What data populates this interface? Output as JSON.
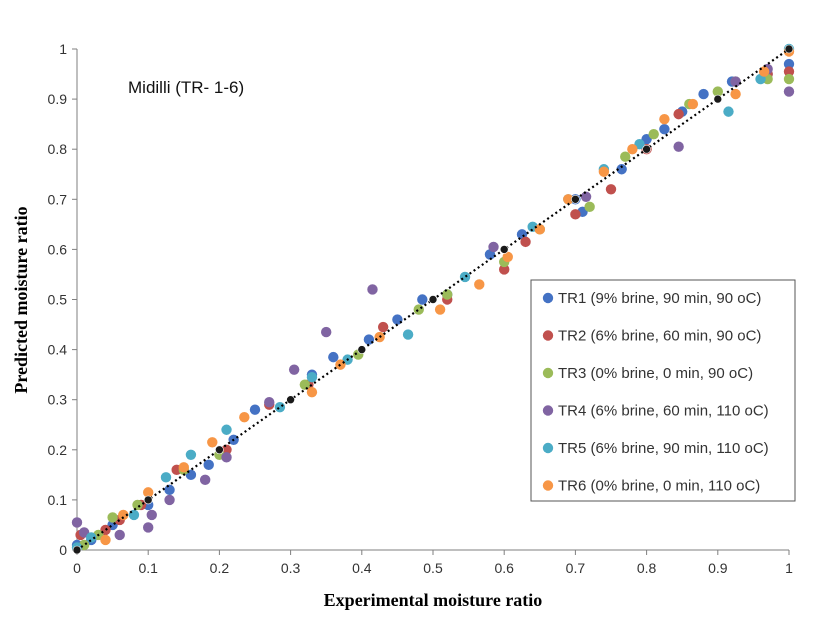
{
  "chart_data": {
    "type": "scatter",
    "annotation": "Midilli (TR- 1-6)",
    "xlabel": "Experimental moisture ratio",
    "ylabel": "Predicted moisture ratio",
    "xlim": [
      0,
      1
    ],
    "ylim": [
      0,
      1
    ],
    "xticks": [
      "0",
      "0.1",
      "0.2",
      "0.3",
      "0.4",
      "0.5",
      "0.6",
      "0.7",
      "0.8",
      "0.9",
      "1"
    ],
    "yticks": [
      "0",
      "0.1",
      "0.2",
      "0.3",
      "0.4",
      "0.5",
      "0.6",
      "0.7",
      "0.8",
      "0.9",
      "1"
    ],
    "grid": false,
    "legend_position": "right-center",
    "reference_line": {
      "style": "dotted",
      "color": "#000000",
      "markers": "black-circle-at-each-0.1",
      "points": [
        [
          0,
          0
        ],
        [
          0.1,
          0.1
        ],
        [
          0.2,
          0.2
        ],
        [
          0.3,
          0.3
        ],
        [
          0.4,
          0.4
        ],
        [
          0.5,
          0.5
        ],
        [
          0.6,
          0.6
        ],
        [
          0.7,
          0.7
        ],
        [
          0.8,
          0.8
        ],
        [
          0.9,
          0.9
        ],
        [
          1,
          1
        ]
      ]
    },
    "series": [
      {
        "name": "TR1 (9% brine, 90 min, 90 oC)",
        "color": "#4472c4",
        "points": [
          [
            0,
            0.01
          ],
          [
            0.02,
            0.02
          ],
          [
            0.05,
            0.05
          ],
          [
            0.1,
            0.09
          ],
          [
            0.13,
            0.12
          ],
          [
            0.16,
            0.15
          ],
          [
            0.185,
            0.17
          ],
          [
            0.22,
            0.22
          ],
          [
            0.25,
            0.28
          ],
          [
            0.33,
            0.35
          ],
          [
            0.36,
            0.385
          ],
          [
            0.41,
            0.42
          ],
          [
            0.45,
            0.46
          ],
          [
            0.485,
            0.5
          ],
          [
            0.52,
            0.51
          ],
          [
            0.58,
            0.59
          ],
          [
            0.625,
            0.63
          ],
          [
            0.7,
            0.7
          ],
          [
            0.71,
            0.675
          ],
          [
            0.765,
            0.76
          ],
          [
            0.8,
            0.82
          ],
          [
            0.825,
            0.84
          ],
          [
            0.85,
            0.875
          ],
          [
            0.88,
            0.91
          ],
          [
            0.92,
            0.935
          ],
          [
            0.97,
            0.95
          ],
          [
            1,
            0.97
          ]
        ]
      },
      {
        "name": "TR2 (6% brine, 60 min, 90 oC)",
        "color": "#c0504d",
        "points": [
          [
            0.005,
            0.03
          ],
          [
            0.04,
            0.04
          ],
          [
            0.06,
            0.06
          ],
          [
            0.09,
            0.09
          ],
          [
            0.14,
            0.16
          ],
          [
            0.21,
            0.2
          ],
          [
            0.27,
            0.29
          ],
          [
            0.325,
            0.33
          ],
          [
            0.43,
            0.445
          ],
          [
            0.52,
            0.5
          ],
          [
            0.6,
            0.56
          ],
          [
            0.63,
            0.615
          ],
          [
            0.7,
            0.67
          ],
          [
            0.75,
            0.72
          ],
          [
            0.8,
            0.8
          ],
          [
            0.845,
            0.87
          ],
          [
            0.97,
            0.95
          ],
          [
            1,
            0.955
          ]
        ]
      },
      {
        "name": "TR3 (0% brine, 0 min, 90 oC)",
        "color": "#9bbb59",
        "points": [
          [
            0.01,
            0.01
          ],
          [
            0.03,
            0.03
          ],
          [
            0.05,
            0.065
          ],
          [
            0.085,
            0.09
          ],
          [
            0.15,
            0.16
          ],
          [
            0.2,
            0.19
          ],
          [
            0.32,
            0.33
          ],
          [
            0.395,
            0.39
          ],
          [
            0.48,
            0.48
          ],
          [
            0.52,
            0.51
          ],
          [
            0.6,
            0.575
          ],
          [
            0.65,
            0.64
          ],
          [
            0.72,
            0.685
          ],
          [
            0.77,
            0.785
          ],
          [
            0.81,
            0.83
          ],
          [
            0.86,
            0.89
          ],
          [
            0.9,
            0.915
          ],
          [
            0.925,
            0.935
          ],
          [
            0.97,
            0.94
          ],
          [
            1,
            0.94
          ]
        ]
      },
      {
        "name": "TR4 (6% brine, 60 min, 110 oC)",
        "color": "#8064a2",
        "points": [
          [
            0,
            0.055
          ],
          [
            0.01,
            0.035
          ],
          [
            0.06,
            0.03
          ],
          [
            0.1,
            0.045
          ],
          [
            0.105,
            0.07
          ],
          [
            0.13,
            0.1
          ],
          [
            0.18,
            0.14
          ],
          [
            0.21,
            0.185
          ],
          [
            0.27,
            0.295
          ],
          [
            0.305,
            0.36
          ],
          [
            0.35,
            0.435
          ],
          [
            0.415,
            0.52
          ],
          [
            0.585,
            0.605
          ],
          [
            0.715,
            0.705
          ],
          [
            0.845,
            0.805
          ],
          [
            0.925,
            0.935
          ],
          [
            0.97,
            0.96
          ],
          [
            1,
            0.915
          ]
        ]
      },
      {
        "name": "TR5 (6% brine, 90 min, 110 oC)",
        "color": "#4bacc6",
        "points": [
          [
            0,
            0.005
          ],
          [
            0.02,
            0.025
          ],
          [
            0.08,
            0.07
          ],
          [
            0.125,
            0.145
          ],
          [
            0.16,
            0.19
          ],
          [
            0.21,
            0.24
          ],
          [
            0.285,
            0.285
          ],
          [
            0.33,
            0.345
          ],
          [
            0.38,
            0.38
          ],
          [
            0.465,
            0.43
          ],
          [
            0.545,
            0.545
          ],
          [
            0.64,
            0.645
          ],
          [
            0.69,
            0.7
          ],
          [
            0.74,
            0.76
          ],
          [
            0.79,
            0.81
          ],
          [
            0.915,
            0.875
          ],
          [
            0.96,
            0.94
          ],
          [
            1,
            1
          ]
        ]
      },
      {
        "name": "TR6 (0% brine, 0 min, 110 oC)",
        "color": "#f79646",
        "points": [
          [
            0.04,
            0.02
          ],
          [
            0.065,
            0.07
          ],
          [
            0.1,
            0.115
          ],
          [
            0.15,
            0.165
          ],
          [
            0.19,
            0.215
          ],
          [
            0.235,
            0.265
          ],
          [
            0.33,
            0.315
          ],
          [
            0.37,
            0.37
          ],
          [
            0.425,
            0.425
          ],
          [
            0.51,
            0.48
          ],
          [
            0.565,
            0.53
          ],
          [
            0.605,
            0.585
          ],
          [
            0.65,
            0.64
          ],
          [
            0.69,
            0.7
          ],
          [
            0.74,
            0.755
          ],
          [
            0.78,
            0.8
          ],
          [
            0.825,
            0.86
          ],
          [
            0.865,
            0.89
          ],
          [
            0.925,
            0.91
          ],
          [
            0.965,
            0.955
          ],
          [
            1,
            0.995
          ]
        ]
      }
    ]
  }
}
